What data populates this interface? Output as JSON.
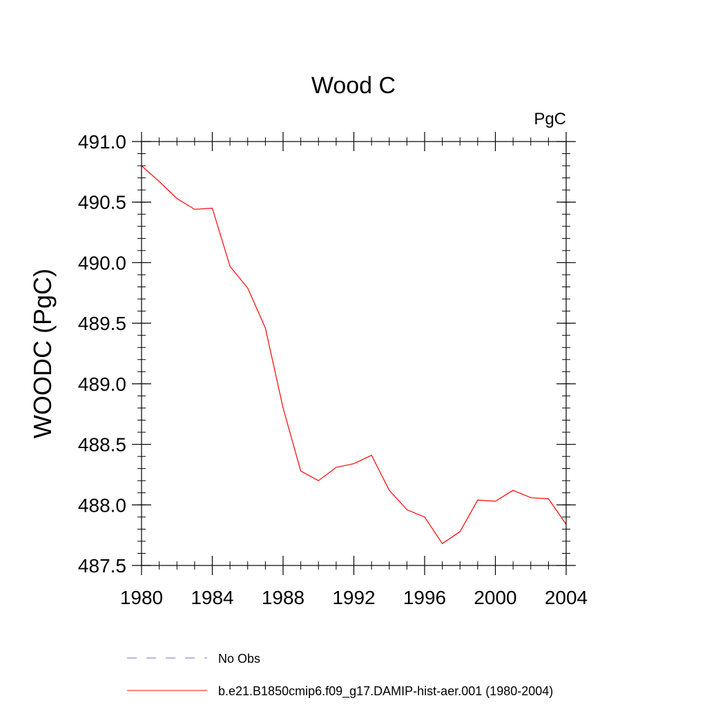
{
  "chart_data": {
    "type": "line",
    "title": "Wood C",
    "units": "PgC",
    "xlabel": "",
    "ylabel": "WOODC  (PgC)",
    "xlim": [
      1980,
      2004
    ],
    "ylim": [
      487.5,
      491.0
    ],
    "x_ticks": [
      1980,
      1984,
      1988,
      1992,
      1996,
      2000,
      2004
    ],
    "y_ticks": [
      "487.5",
      "488.0",
      "488.5",
      "489.0",
      "489.5",
      "490.0",
      "490.5",
      "491.0"
    ],
    "grid": false,
    "legend_position": "bottom",
    "series": [
      {
        "name": "No Obs",
        "color": "#7a6fbf",
        "style": "dashed",
        "x": [],
        "y": []
      },
      {
        "name": "b.e21.B1850cmip6.f09_g17.DAMIP-hist-aer.001 (1980-2004)",
        "color": "#ff0000",
        "style": "solid",
        "x": [
          1980,
          1981,
          1982,
          1983,
          1984,
          1985,
          1986,
          1987,
          1988,
          1989,
          1990,
          1991,
          1992,
          1993,
          1994,
          1995,
          1996,
          1997,
          1998,
          1999,
          2000,
          2001,
          2002,
          2003,
          2004
        ],
        "y": [
          490.8,
          490.67,
          490.53,
          490.44,
          490.45,
          489.97,
          489.79,
          489.46,
          488.8,
          488.28,
          488.2,
          488.31,
          488.34,
          488.41,
          488.12,
          487.96,
          487.9,
          487.68,
          487.78,
          488.04,
          488.03,
          488.12,
          488.06,
          488.05,
          487.84
        ]
      }
    ]
  }
}
